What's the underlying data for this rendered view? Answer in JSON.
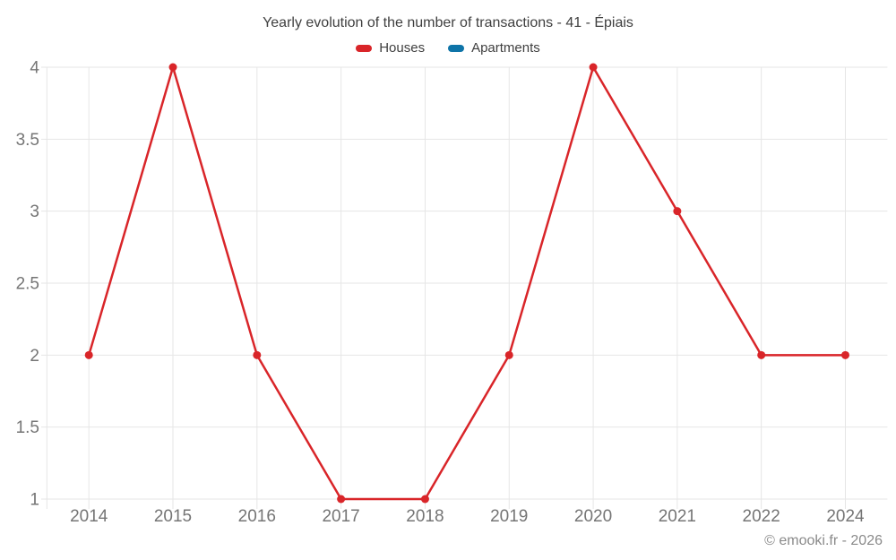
{
  "title": "Yearly evolution of the number of transactions - 41 - Épiais",
  "footer": "© emooki.fr - 2026",
  "colors": {
    "houses": "#d92529",
    "apartments": "#0e74a8",
    "grid": "#e6e6e6",
    "axis_text": "#757575",
    "title_text": "#3f3f3f",
    "footer_text": "#8a8a8a",
    "background": "#ffffff"
  },
  "chart_data": {
    "type": "line",
    "title": "Yearly evolution of the number of transactions - 41 - Épiais",
    "categories": [
      "2014",
      "2015",
      "2016",
      "2017",
      "2018",
      "2019",
      "2020",
      "2021",
      "2022",
      "2024"
    ],
    "series": [
      {
        "name": "Houses",
        "color": "#d92529",
        "values": [
          2,
          4,
          2,
          1,
          1,
          2,
          4,
          3,
          2,
          2
        ]
      },
      {
        "name": "Apartments",
        "color": "#0e74a8",
        "values": []
      }
    ],
    "xlabel": "",
    "ylabel": "",
    "ylim": [
      1,
      4
    ],
    "yticks": [
      1,
      1.5,
      2,
      2.5,
      3,
      3.5,
      4
    ],
    "grid": true,
    "legend_position": "top"
  }
}
